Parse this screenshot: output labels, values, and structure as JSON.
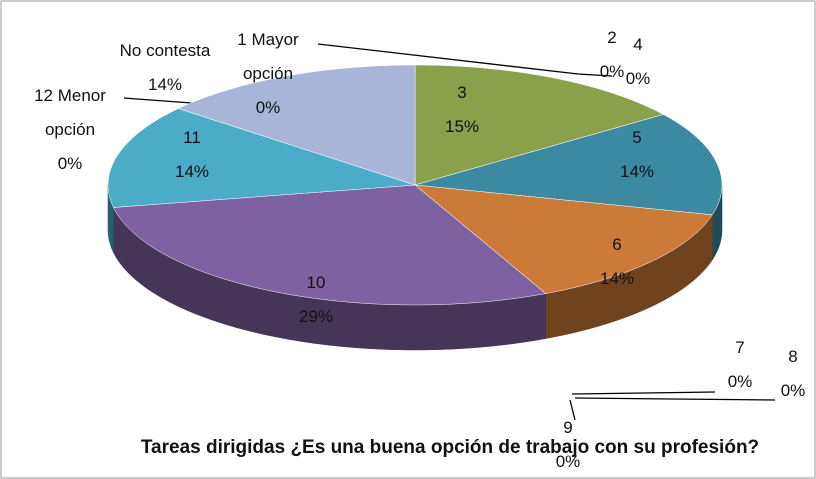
{
  "chart_data": {
    "type": "pie",
    "title": "Tareas dirigidas ¿Es una buena opción de trabajo con su profesión?",
    "categories": [
      "1 Mayor opción",
      "2",
      "3",
      "4",
      "5",
      "6",
      "7",
      "8",
      "9",
      "10",
      "11",
      "12 Menor opción",
      "No contesta"
    ],
    "values": [
      0,
      0,
      15,
      0,
      14,
      14,
      0,
      0,
      0,
      29,
      14,
      0,
      14
    ],
    "value_labels": [
      "0%",
      "0%",
      "15%",
      "0%",
      "14%",
      "14%",
      "0%",
      "0%",
      "0%",
      "29%",
      "14%",
      "0%",
      "14%"
    ],
    "colors": [
      "#4f81bd",
      "#c0504d",
      "#8aa04b",
      "#9bbb59",
      "#3b8aa2",
      "#cc7a38",
      "#8064a2",
      "#4bacc6",
      "#f79646",
      "#7e61a0",
      "#4aacc6",
      "#2c4d75",
      "#a7b5d8"
    ]
  }
}
